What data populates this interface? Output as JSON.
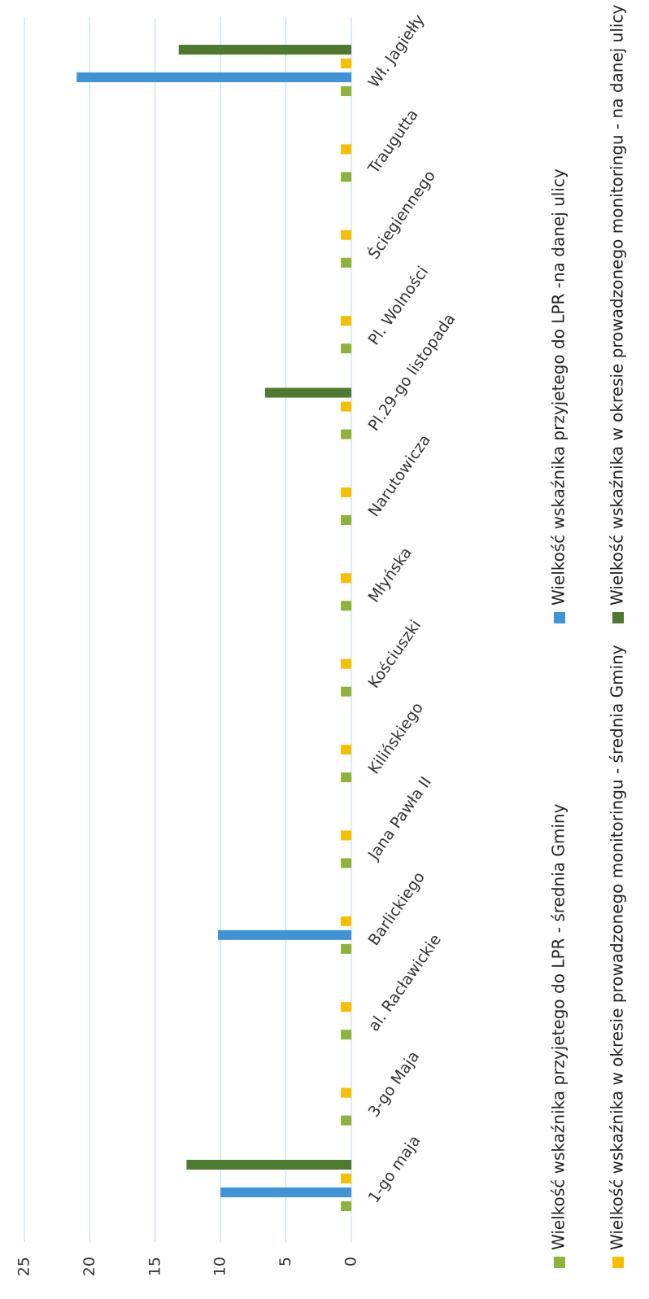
{
  "chart_data": {
    "type": "bar",
    "categories": [
      "1-go maja",
      "3-go Maja",
      "al. Racławickie",
      "Barlickiego",
      "Jana Pawła II",
      "Kilińskiego",
      "Kościuszki",
      "Młyńska",
      "Narutowicza",
      "Pl.29-go listopada",
      "Pl. Wolności",
      "Ściegiennego",
      "Traugutta",
      "Wł. Jagiełły"
    ],
    "series": [
      {
        "name": "Wielkość wskaźnika przyjetego do LPR - średnia Gminy",
        "color": "#8db33a",
        "values": [
          0.8,
          0.8,
          0.8,
          0.8,
          0.8,
          0.8,
          0.8,
          0.8,
          0.8,
          0.8,
          0.8,
          0.8,
          0.8,
          0.8
        ]
      },
      {
        "name": "Wielkość wskaźnika przyjetego do LPR -na danej ulicy",
        "color": "#3f93d6",
        "values": [
          10,
          0,
          0,
          10.2,
          0,
          0,
          0,
          0,
          0,
          0,
          0,
          0,
          0,
          21
        ]
      },
      {
        "name": "Wielkość wskaźnika w okresie prowadzonego monitoringu - średnia Gminy",
        "color": "#f5c000",
        "values": [
          0.8,
          0.8,
          0.8,
          0.8,
          0.8,
          0.8,
          0.8,
          0.8,
          0.8,
          0.8,
          0.8,
          0.8,
          0.8,
          0.8
        ]
      },
      {
        "name": "Wielkość wskaźnika w okresie prowadzonego monitoringu - na danej ulicy",
        "color": "#4e7a30",
        "values": [
          12.6,
          0,
          0,
          0,
          0,
          0,
          0,
          0,
          0,
          6.6,
          0,
          0,
          0,
          13.2
        ]
      }
    ],
    "ylim": [
      0,
      25
    ],
    "yticks": [
      0,
      5,
      10,
      15,
      20,
      25
    ],
    "grid": true
  }
}
